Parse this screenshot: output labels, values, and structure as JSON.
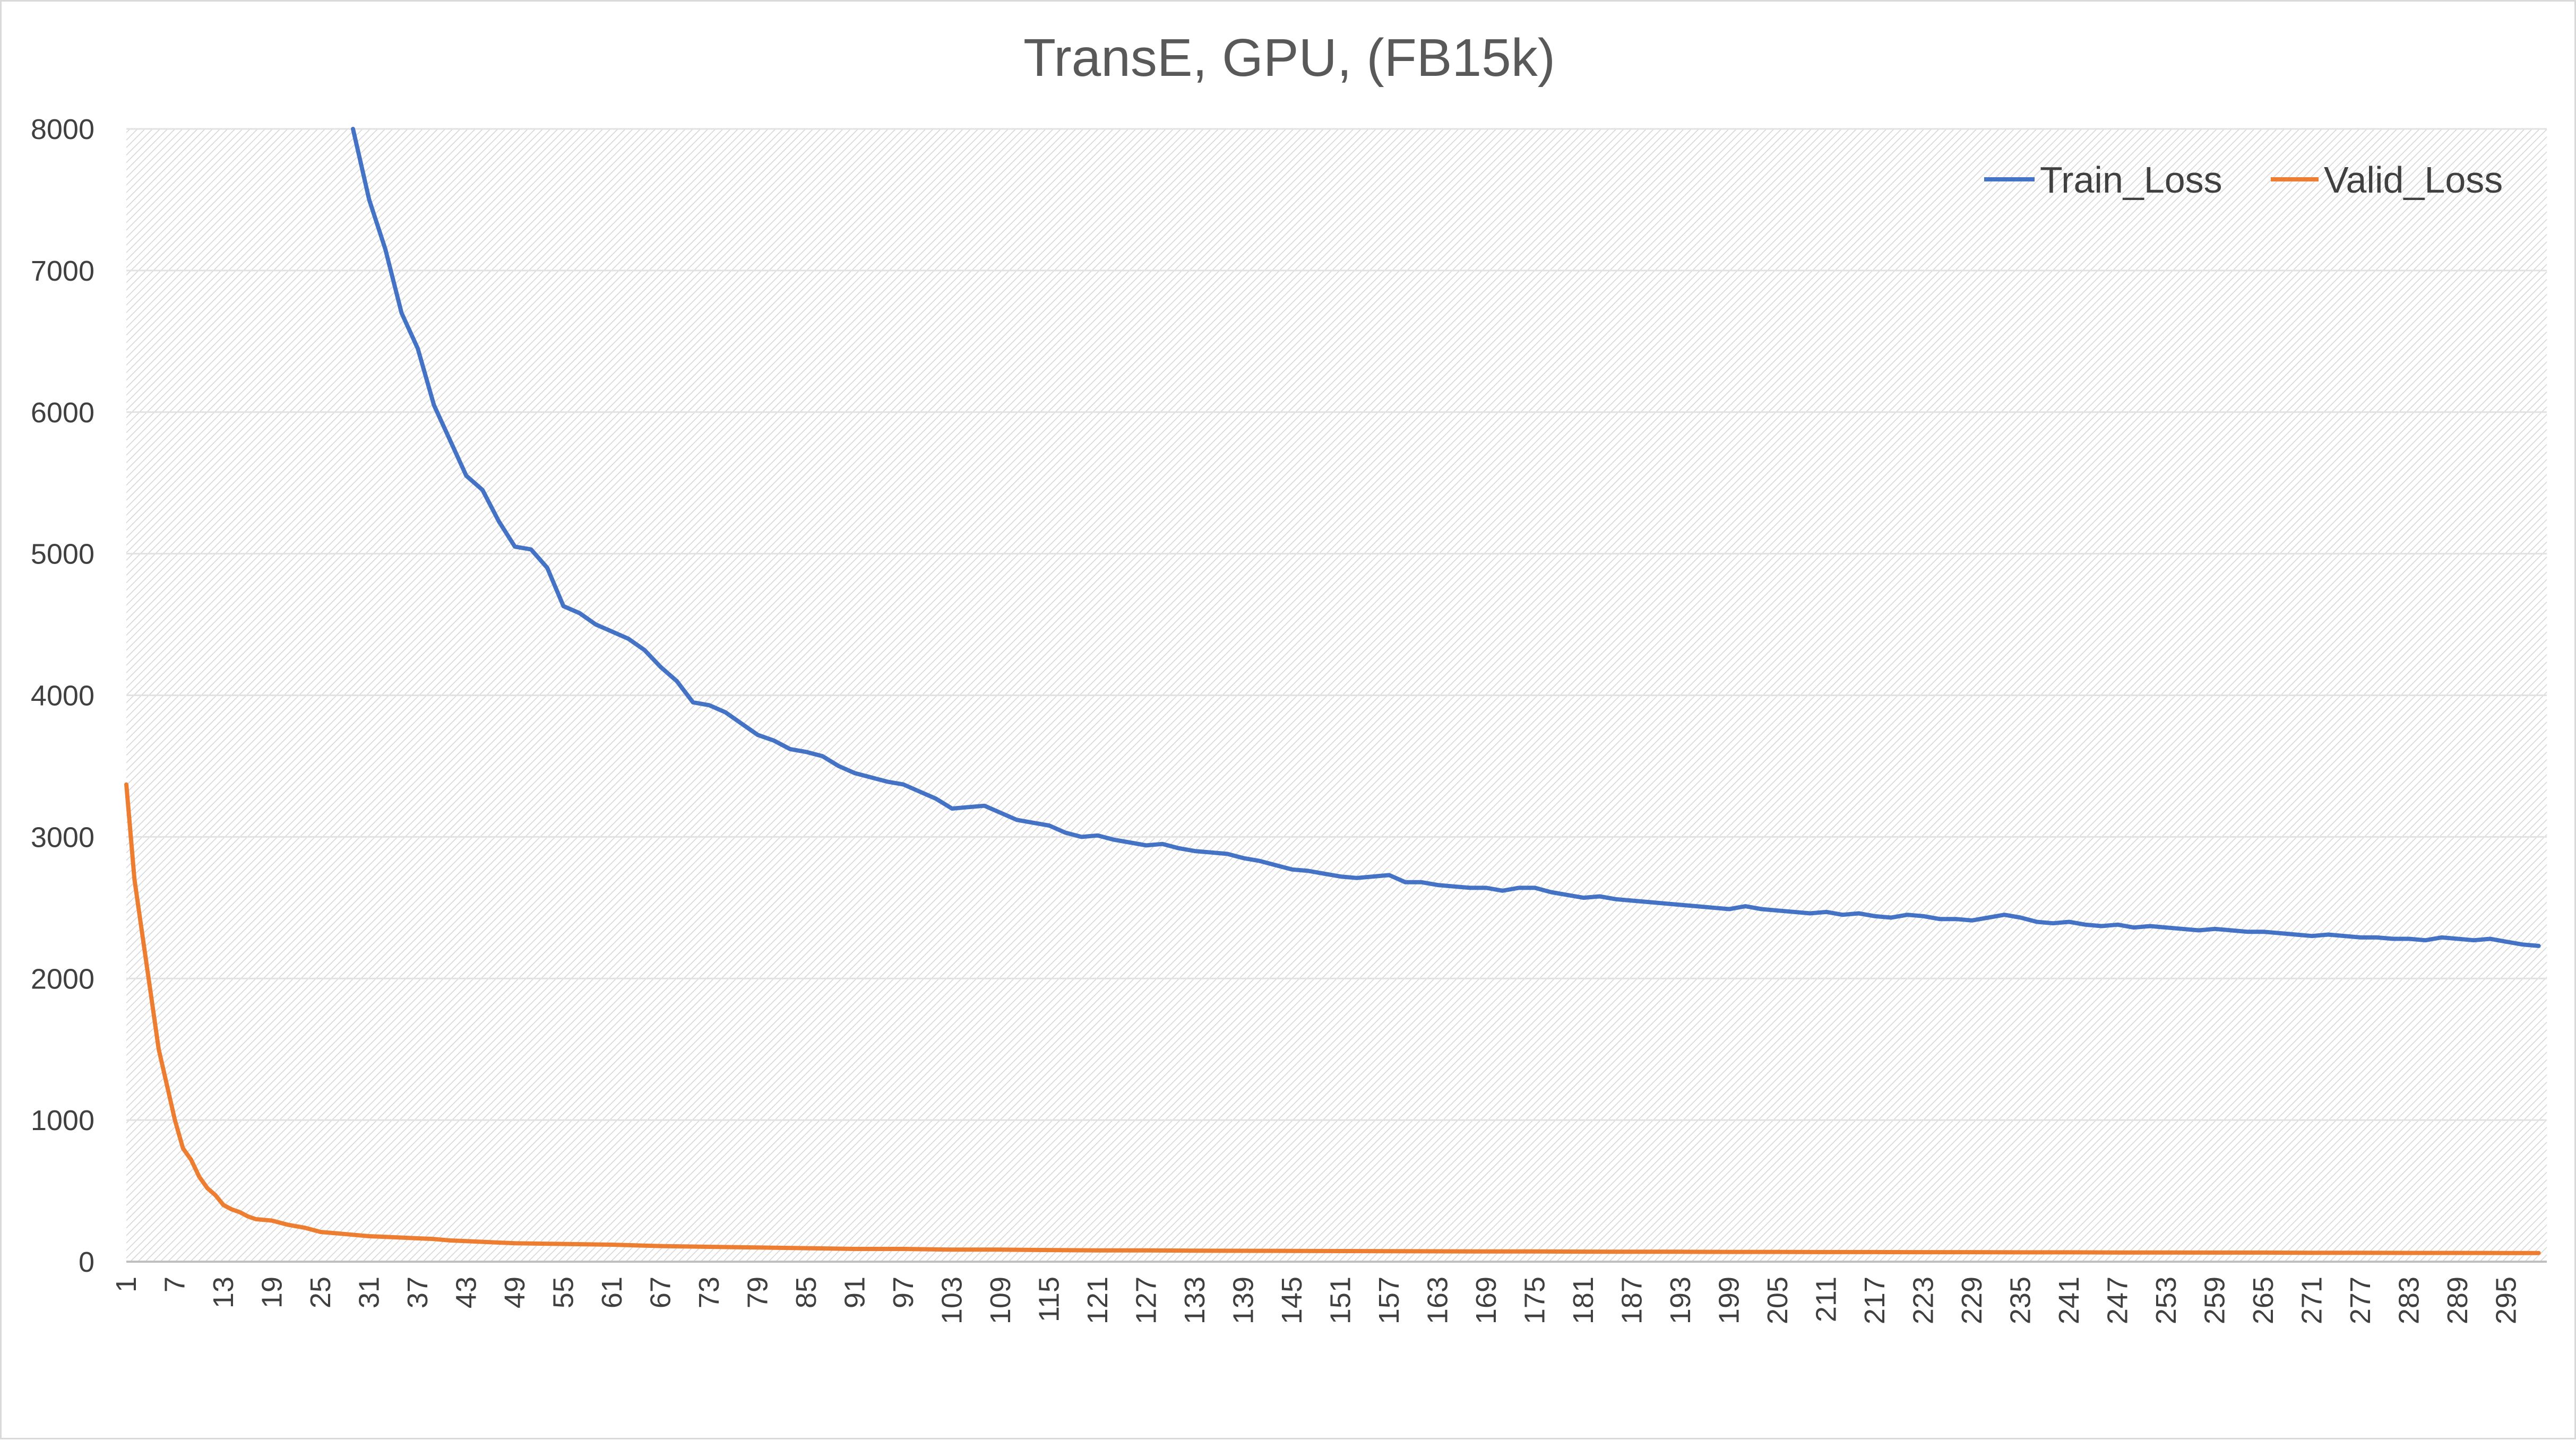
{
  "chart_data": {
    "type": "line",
    "title": "TransE, GPU, (FB15k)",
    "xlabel": "",
    "ylabel": "",
    "ylim": [
      0,
      8000
    ],
    "yticks": [
      0,
      1000,
      2000,
      3000,
      4000,
      5000,
      6000,
      7000,
      8000
    ],
    "xticks": [
      1,
      7,
      13,
      19,
      25,
      31,
      37,
      43,
      49,
      55,
      61,
      67,
      73,
      79,
      85,
      91,
      97,
      103,
      109,
      115,
      121,
      127,
      133,
      139,
      145,
      151,
      157,
      163,
      169,
      175,
      181,
      187,
      193,
      199,
      205,
      211,
      217,
      223,
      229,
      235,
      241,
      247,
      253,
      259,
      265,
      271,
      277,
      283,
      289,
      295
    ],
    "xlim": [
      1,
      300
    ],
    "grid": true,
    "legend_position": "top-right",
    "series": [
      {
        "name": "Train_Loss",
        "color": "#4472c4",
        "points": [
          [
            29,
            8000
          ],
          [
            31,
            7500
          ],
          [
            33,
            7150
          ],
          [
            35,
            6700
          ],
          [
            37,
            6450
          ],
          [
            39,
            6050
          ],
          [
            41,
            5800
          ],
          [
            43,
            5550
          ],
          [
            45,
            5450
          ],
          [
            47,
            5230
          ],
          [
            49,
            5050
          ],
          [
            51,
            5030
          ],
          [
            53,
            4900
          ],
          [
            55,
            4630
          ],
          [
            57,
            4580
          ],
          [
            59,
            4500
          ],
          [
            61,
            4450
          ],
          [
            63,
            4400
          ],
          [
            65,
            4320
          ],
          [
            67,
            4200
          ],
          [
            69,
            4100
          ],
          [
            71,
            3950
          ],
          [
            73,
            3930
          ],
          [
            75,
            3880
          ],
          [
            77,
            3800
          ],
          [
            79,
            3720
          ],
          [
            81,
            3680
          ],
          [
            83,
            3620
          ],
          [
            85,
            3600
          ],
          [
            87,
            3570
          ],
          [
            89,
            3500
          ],
          [
            91,
            3450
          ],
          [
            93,
            3420
          ],
          [
            95,
            3390
          ],
          [
            97,
            3370
          ],
          [
            99,
            3320
          ],
          [
            101,
            3270
          ],
          [
            103,
            3200
          ],
          [
            105,
            3210
          ],
          [
            107,
            3220
          ],
          [
            109,
            3170
          ],
          [
            111,
            3120
          ],
          [
            113,
            3100
          ],
          [
            115,
            3080
          ],
          [
            117,
            3030
          ],
          [
            119,
            3000
          ],
          [
            121,
            3010
          ],
          [
            123,
            2980
          ],
          [
            125,
            2960
          ],
          [
            127,
            2940
          ],
          [
            129,
            2950
          ],
          [
            131,
            2920
          ],
          [
            133,
            2900
          ],
          [
            135,
            2890
          ],
          [
            137,
            2880
          ],
          [
            139,
            2850
          ],
          [
            141,
            2830
          ],
          [
            143,
            2800
          ],
          [
            145,
            2770
          ],
          [
            147,
            2760
          ],
          [
            149,
            2740
          ],
          [
            151,
            2720
          ],
          [
            153,
            2710
          ],
          [
            155,
            2720
          ],
          [
            157,
            2730
          ],
          [
            159,
            2680
          ],
          [
            161,
            2680
          ],
          [
            163,
            2660
          ],
          [
            165,
            2650
          ],
          [
            167,
            2640
          ],
          [
            169,
            2640
          ],
          [
            171,
            2620
          ],
          [
            173,
            2640
          ],
          [
            175,
            2640
          ],
          [
            177,
            2610
          ],
          [
            179,
            2590
          ],
          [
            181,
            2570
          ],
          [
            183,
            2580
          ],
          [
            185,
            2560
          ],
          [
            187,
            2550
          ],
          [
            189,
            2540
          ],
          [
            191,
            2530
          ],
          [
            193,
            2520
          ],
          [
            195,
            2510
          ],
          [
            197,
            2500
          ],
          [
            199,
            2490
          ],
          [
            201,
            2510
          ],
          [
            203,
            2490
          ],
          [
            205,
            2480
          ],
          [
            207,
            2470
          ],
          [
            209,
            2460
          ],
          [
            211,
            2470
          ],
          [
            213,
            2450
          ],
          [
            215,
            2460
          ],
          [
            217,
            2440
          ],
          [
            219,
            2430
          ],
          [
            221,
            2450
          ],
          [
            223,
            2440
          ],
          [
            225,
            2420
          ],
          [
            227,
            2420
          ],
          [
            229,
            2410
          ],
          [
            231,
            2430
          ],
          [
            233,
            2450
          ],
          [
            235,
            2430
          ],
          [
            237,
            2400
          ],
          [
            239,
            2390
          ],
          [
            241,
            2400
          ],
          [
            243,
            2380
          ],
          [
            245,
            2370
          ],
          [
            247,
            2380
          ],
          [
            249,
            2360
          ],
          [
            251,
            2370
          ],
          [
            253,
            2360
          ],
          [
            255,
            2350
          ],
          [
            257,
            2340
          ],
          [
            259,
            2350
          ],
          [
            261,
            2340
          ],
          [
            263,
            2330
          ],
          [
            265,
            2330
          ],
          [
            267,
            2320
          ],
          [
            269,
            2310
          ],
          [
            271,
            2300
          ],
          [
            273,
            2310
          ],
          [
            275,
            2300
          ],
          [
            277,
            2290
          ],
          [
            279,
            2290
          ],
          [
            281,
            2280
          ],
          [
            283,
            2280
          ],
          [
            285,
            2270
          ],
          [
            287,
            2290
          ],
          [
            289,
            2280
          ],
          [
            291,
            2270
          ],
          [
            293,
            2280
          ],
          [
            295,
            2260
          ],
          [
            297,
            2240
          ],
          [
            299,
            2230
          ]
        ]
      },
      {
        "name": "Valid_Loss",
        "color": "#ed7d31",
        "points": [
          [
            1,
            3370
          ],
          [
            2,
            2700
          ],
          [
            3,
            2300
          ],
          [
            4,
            1900
          ],
          [
            5,
            1500
          ],
          [
            6,
            1250
          ],
          [
            7,
            1000
          ],
          [
            8,
            800
          ],
          [
            9,
            720
          ],
          [
            10,
            600
          ],
          [
            11,
            520
          ],
          [
            12,
            470
          ],
          [
            13,
            400
          ],
          [
            14,
            370
          ],
          [
            15,
            350
          ],
          [
            16,
            320
          ],
          [
            17,
            300
          ],
          [
            19,
            290
          ],
          [
            21,
            260
          ],
          [
            23,
            240
          ],
          [
            25,
            210
          ],
          [
            27,
            200
          ],
          [
            29,
            190
          ],
          [
            31,
            180
          ],
          [
            33,
            175
          ],
          [
            35,
            170
          ],
          [
            37,
            165
          ],
          [
            39,
            160
          ],
          [
            41,
            150
          ],
          [
            43,
            145
          ],
          [
            45,
            140
          ],
          [
            47,
            135
          ],
          [
            49,
            130
          ],
          [
            55,
            125
          ],
          [
            61,
            120
          ],
          [
            67,
            110
          ],
          [
            73,
            105
          ],
          [
            79,
            100
          ],
          [
            85,
            95
          ],
          [
            91,
            90
          ],
          [
            97,
            90
          ],
          [
            103,
            85
          ],
          [
            109,
            85
          ],
          [
            115,
            82
          ],
          [
            121,
            80
          ],
          [
            127,
            80
          ],
          [
            133,
            78
          ],
          [
            139,
            77
          ],
          [
            145,
            76
          ],
          [
            151,
            75
          ],
          [
            157,
            74
          ],
          [
            163,
            73
          ],
          [
            169,
            72
          ],
          [
            175,
            72
          ],
          [
            181,
            71
          ],
          [
            187,
            70
          ],
          [
            193,
            70
          ],
          [
            199,
            69
          ],
          [
            205,
            69
          ],
          [
            211,
            68
          ],
          [
            217,
            68
          ],
          [
            223,
            67
          ],
          [
            229,
            67
          ],
          [
            235,
            66
          ],
          [
            241,
            66
          ],
          [
            247,
            65
          ],
          [
            253,
            65
          ],
          [
            259,
            64
          ],
          [
            265,
            64
          ],
          [
            271,
            63
          ],
          [
            277,
            63
          ],
          [
            283,
            62
          ],
          [
            289,
            62
          ],
          [
            295,
            61
          ],
          [
            299,
            61
          ]
        ]
      }
    ]
  }
}
